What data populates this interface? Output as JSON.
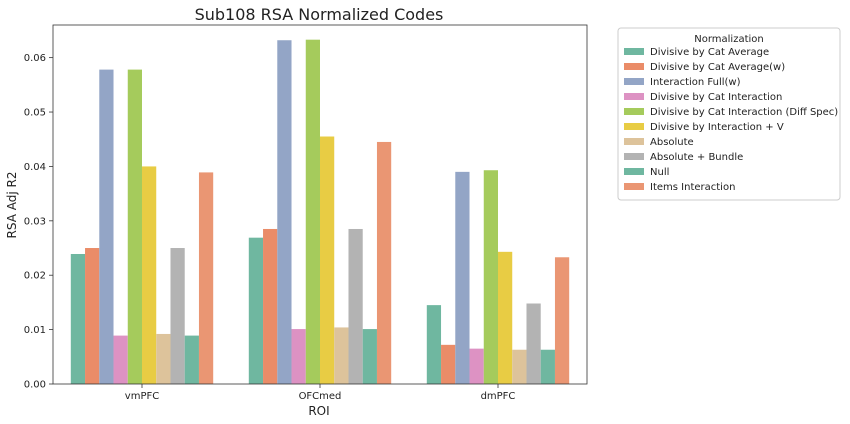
{
  "chart_data": {
    "type": "bar",
    "title": "Sub108 RSA Normalized Codes",
    "xlabel": "ROI",
    "ylabel": "RSA Adj R2",
    "ylim": [
      0,
      0.066
    ],
    "yticks": [
      "0.00",
      "0.01",
      "0.02",
      "0.03",
      "0.04",
      "0.05",
      "0.06"
    ],
    "categories": [
      "vmPFC",
      "OFCmed",
      "dmPFC"
    ],
    "legend_title": "Normalization",
    "legend_position": "outside-right",
    "series": [
      {
        "name": "Divisive by Cat Average",
        "color": "#6fb7a0",
        "values": [
          0.0239,
          0.0269,
          0.0145
        ]
      },
      {
        "name": "Divisive by Cat Average(w)",
        "color": "#ea8c68",
        "values": [
          0.025,
          0.0285,
          0.0072
        ]
      },
      {
        "name": "Interaction Full(w)",
        "color": "#93a5c6",
        "values": [
          0.0578,
          0.0632,
          0.039
        ]
      },
      {
        "name": "Divisive by Cat Interaction",
        "color": "#dd92c3",
        "values": [
          0.0089,
          0.0101,
          0.0065
        ]
      },
      {
        "name": "Divisive by Cat Interaction (Diff Spec)",
        "color": "#a5cb5c",
        "values": [
          0.0578,
          0.0633,
          0.0393
        ]
      },
      {
        "name": "Divisive by Interaction + V",
        "color": "#e8cc44",
        "values": [
          0.04,
          0.0455,
          0.0243
        ]
      },
      {
        "name": "Absolute",
        "color": "#ddc39b",
        "values": [
          0.0092,
          0.0104,
          0.0063
        ]
      },
      {
        "name": "Absolute + Bundle",
        "color": "#b3b3b3",
        "values": [
          0.025,
          0.0285,
          0.0148
        ]
      },
      {
        "name": "Null",
        "color": "#6fb7a0",
        "values": [
          0.0089,
          0.0101,
          0.0063
        ]
      },
      {
        "name": "Items Interaction",
        "color": "#ea9673",
        "values": [
          0.0389,
          0.0445,
          0.0233
        ]
      }
    ]
  }
}
